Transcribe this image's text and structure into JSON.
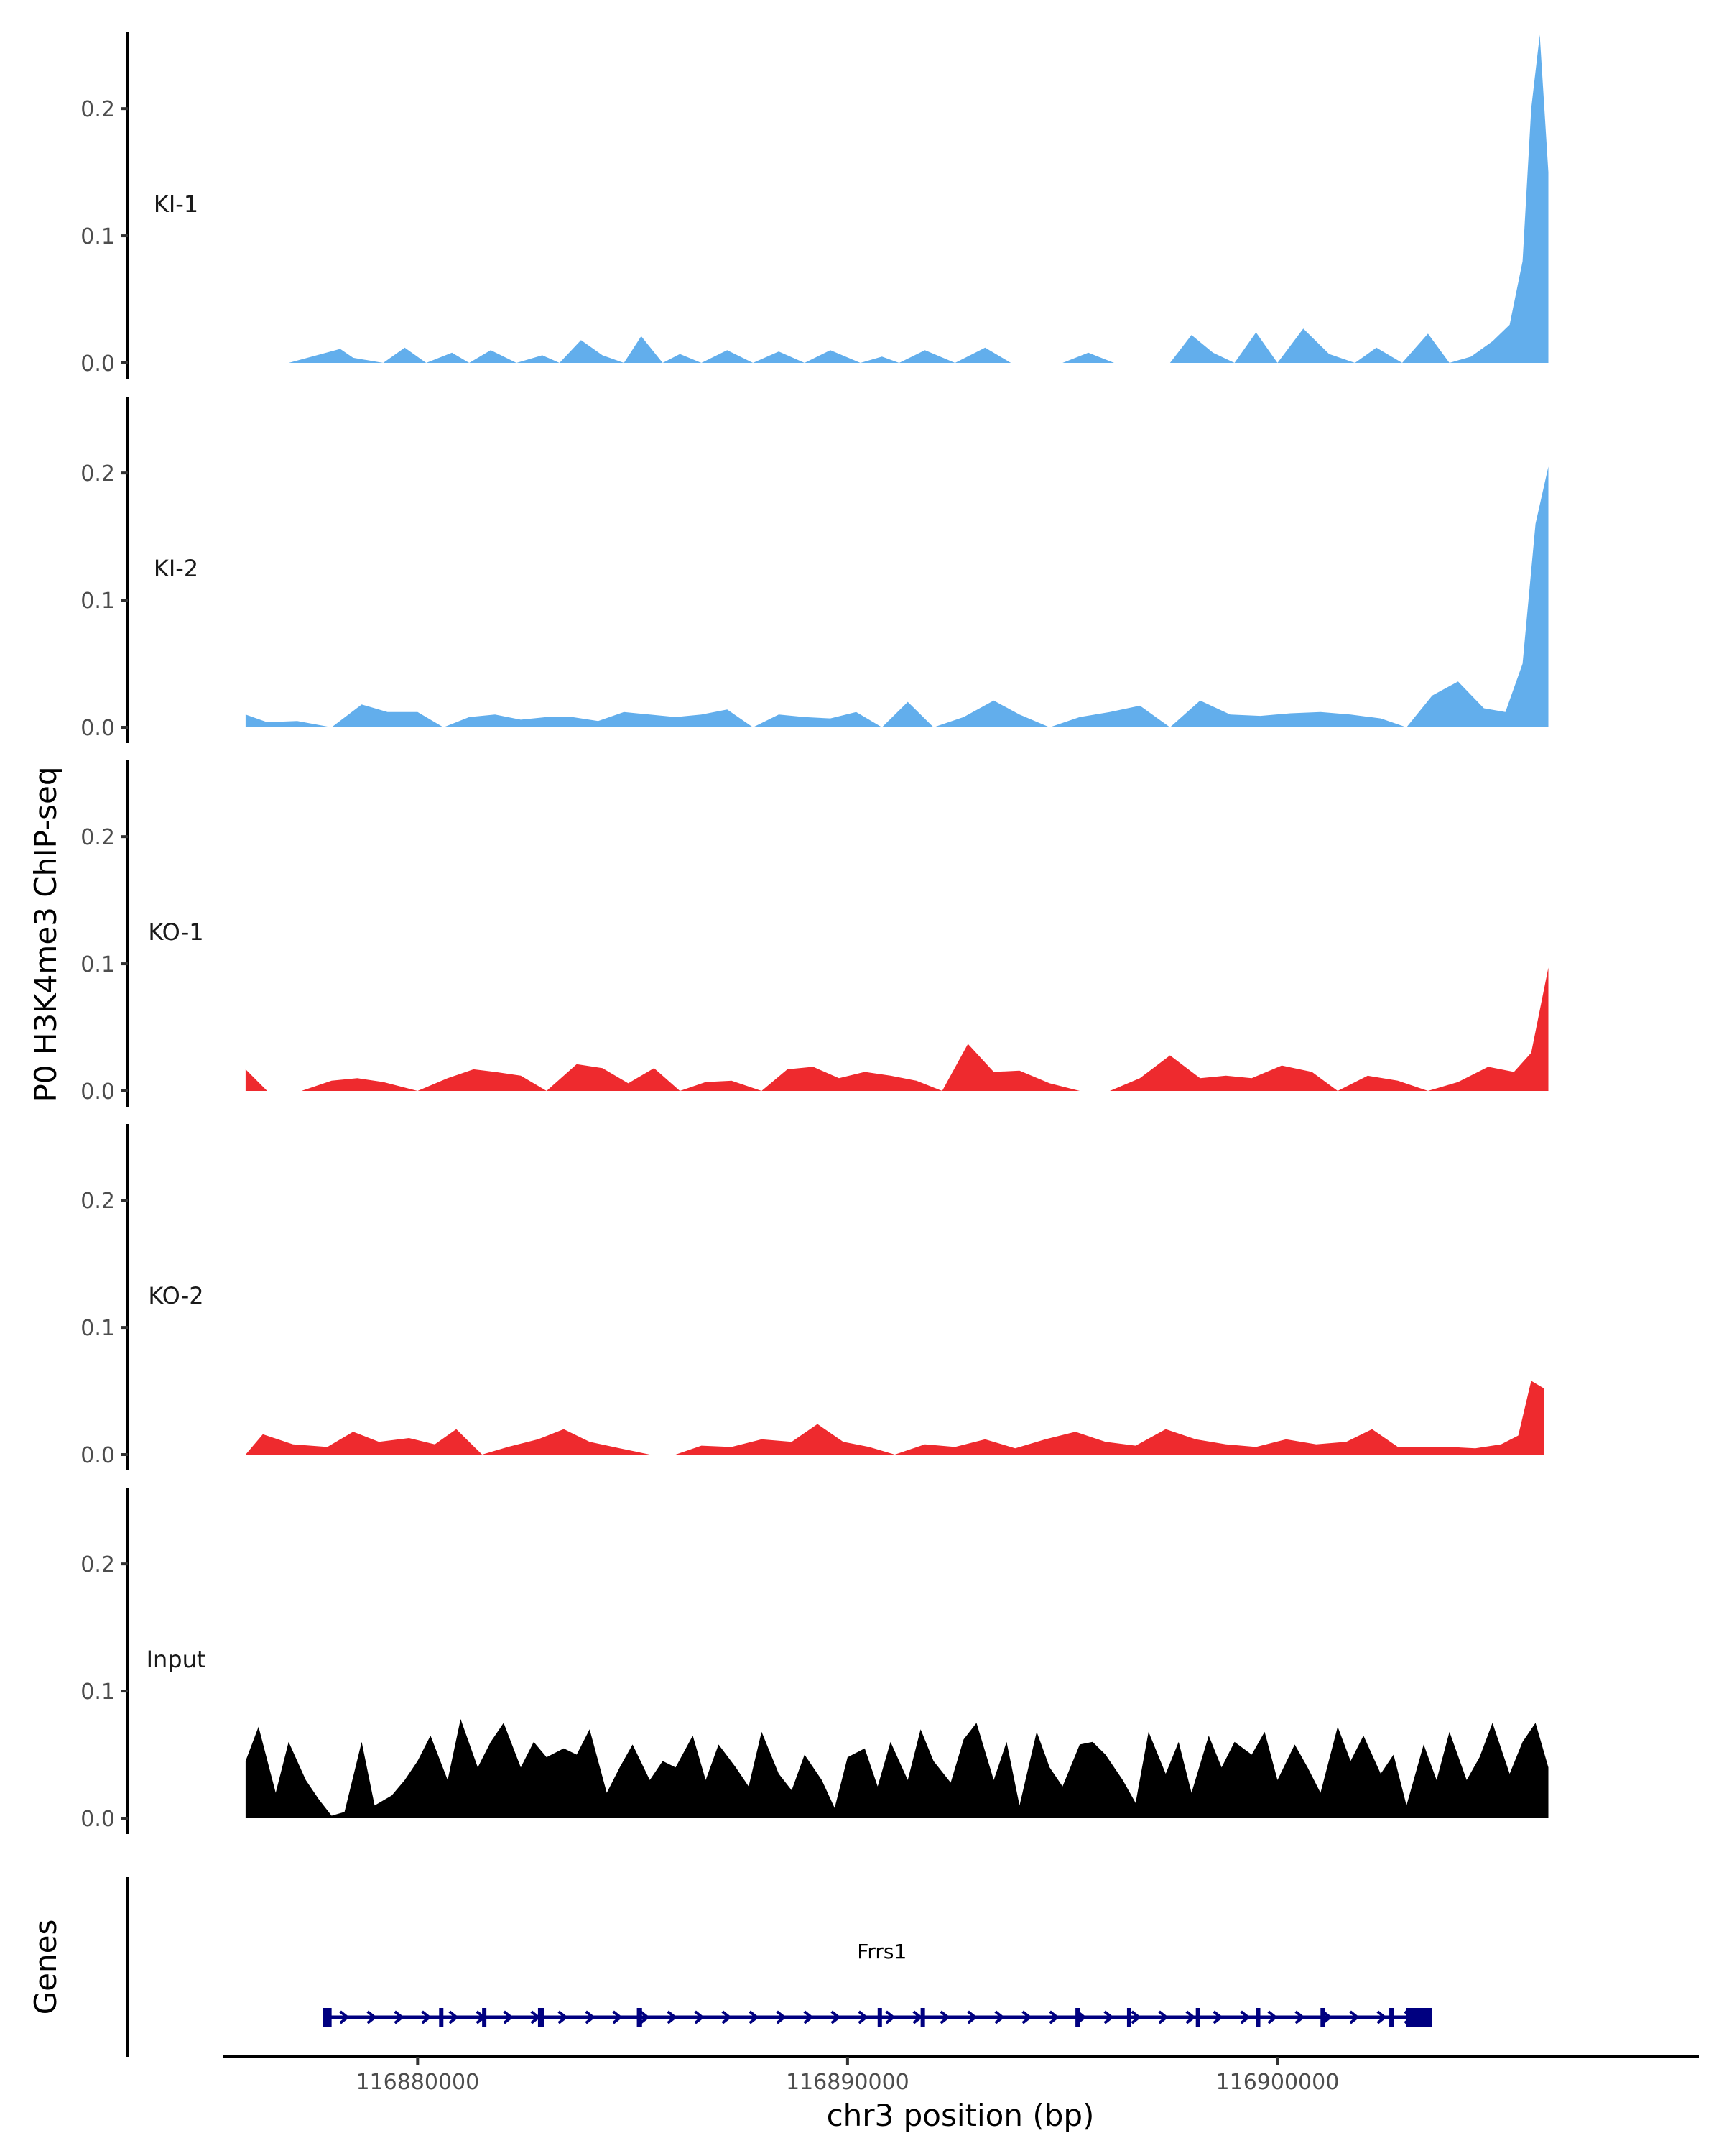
{
  "chart_data": {
    "type": "area",
    "ylabel": "P0 H3K4me3 ChIP-seq",
    "xlabel": "chr3 position (bp)",
    "xlim": [
      116875500,
      116909800
    ],
    "x_ticks": [
      {
        "value": 116880000,
        "label": "116880000"
      },
      {
        "value": 116890000,
        "label": "116890000"
      },
      {
        "value": 116900000,
        "label": "116900000"
      }
    ],
    "ylim": [
      0,
      0.26
    ],
    "y_ticks": [
      {
        "value": 0.0,
        "label": "0.0"
      },
      {
        "value": 0.1,
        "label": "0.1"
      },
      {
        "value": 0.2,
        "label": "0.2"
      }
    ],
    "grid": false,
    "tracks": [
      {
        "name": "KI-1",
        "color": "#62AEEC",
        "x": [
          116876000,
          116876800,
          116877000,
          116878200,
          116878500,
          116879200,
          116879700,
          116880200,
          116880800,
          116881200,
          116881700,
          116882300,
          116882900,
          116883300,
          116883800,
          116884300,
          116884800,
          116885200,
          116885700,
          116886100,
          116886600,
          116887200,
          116887800,
          116888400,
          116889000,
          116889600,
          116890300,
          116890800,
          116891200,
          116891800,
          116892500,
          116893200,
          116893800,
          116894400,
          116895000,
          116895600,
          116896200,
          116896800,
          116897500,
          116898000,
          116898500,
          116899000,
          116899500,
          116900000,
          116900600,
          116901200,
          116901800,
          116902300,
          116902900,
          116903500,
          116904000,
          116904500,
          116905000,
          116905400,
          116905700,
          116905900,
          116906100,
          116906300
        ],
        "y": [
          0,
          0,
          0,
          0.011,
          0.004,
          0,
          0.012,
          0,
          0.008,
          0,
          0.01,
          0,
          0.006,
          0,
          0.018,
          0.006,
          0,
          0.021,
          0,
          0.007,
          0,
          0.01,
          0,
          0.009,
          0,
          0.01,
          0,
          0.005,
          0,
          0.01,
          0,
          0.012,
          0,
          0,
          0,
          0.008,
          0,
          0,
          0,
          0.022,
          0.008,
          0,
          0.024,
          0,
          0.027,
          0.007,
          0,
          0.012,
          0,
          0.023,
          0,
          0.005,
          0.017,
          0.03,
          0.08,
          0.2,
          0.258,
          0.15
        ],
        "x_end": 116906300
      },
      {
        "name": "KI-2",
        "color": "#62AEEC",
        "x": [
          116876000,
          116876500,
          116877200,
          116878000,
          116878700,
          116879300,
          116880000,
          116880600,
          116881200,
          116881800,
          116882400,
          116883000,
          116883600,
          116884200,
          116884800,
          116885400,
          116886000,
          116886600,
          116887200,
          116887800,
          116888400,
          116889000,
          116889600,
          116890200,
          116890800,
          116891400,
          116892000,
          116892700,
          116893400,
          116894000,
          116894700,
          116895400,
          116896100,
          116896800,
          116897500,
          116898200,
          116898900,
          116899600,
          116900300,
          116901000,
          116901700,
          116902400,
          116903000,
          116903600,
          116904200,
          116904800,
          116905300,
          116905700,
          116906000,
          116906300
        ],
        "y": [
          0.01,
          0.004,
          0.005,
          0,
          0.018,
          0.012,
          0.012,
          0,
          0.008,
          0.01,
          0.006,
          0.008,
          0.008,
          0.005,
          0.012,
          0.01,
          0.008,
          0.01,
          0.014,
          0,
          0.01,
          0.008,
          0.007,
          0.012,
          0,
          0.02,
          0,
          0.008,
          0.021,
          0.01,
          0,
          0.008,
          0.012,
          0.017,
          0,
          0.021,
          0.01,
          0.009,
          0.011,
          0.012,
          0.01,
          0.007,
          0,
          0.025,
          0.036,
          0.015,
          0.012,
          0.05,
          0.16,
          0.205
        ]
      },
      {
        "name": "KO-1",
        "color": "#EE2A2E",
        "x": [
          116876000,
          116876500,
          116877300,
          116878000,
          116878600,
          116879200,
          116880000,
          116880700,
          116881300,
          116881800,
          116882400,
          116883000,
          116883700,
          116884300,
          116884900,
          116885500,
          116886100,
          116886700,
          116887300,
          116888000,
          116888600,
          116889200,
          116889800,
          116890400,
          116891000,
          116891600,
          116892200,
          116892800,
          116893400,
          116894000,
          116894700,
          116895400,
          116896100,
          116896800,
          116897500,
          116898200,
          116898800,
          116899400,
          116900100,
          116900800,
          116901400,
          116902100,
          116902800,
          116903500,
          116904200,
          116904900,
          116905500,
          116905900,
          116906300
        ],
        "y": [
          0.017,
          0,
          0,
          0.008,
          0.01,
          0.007,
          0,
          0.01,
          0.017,
          0.015,
          0.012,
          0,
          0.021,
          0.018,
          0.006,
          0.018,
          0,
          0.007,
          0.008,
          0,
          0.017,
          0.019,
          0.01,
          0.015,
          0.012,
          0.008,
          0,
          0.037,
          0.015,
          0.016,
          0.006,
          0,
          0,
          0.01,
          0.028,
          0.01,
          0.012,
          0.01,
          0.02,
          0.015,
          0,
          0.012,
          0.008,
          0,
          0.007,
          0.019,
          0.015,
          0.03,
          0.097
        ]
      },
      {
        "name": "KO-2",
        "color": "#EE2A2E",
        "x": [
          116876000,
          116876400,
          116877100,
          116877900,
          116878500,
          116879100,
          116879800,
          116880400,
          116880900,
          116881500,
          116882100,
          116882800,
          116883400,
          116884000,
          116884700,
          116885400,
          116886000,
          116886600,
          116887300,
          116888000,
          116888700,
          116889300,
          116889900,
          116890500,
          116891100,
          116891800,
          116892500,
          116893200,
          116893900,
          116894600,
          116895300,
          116896000,
          116896700,
          116897400,
          116898100,
          116898800,
          116899500,
          116900200,
          116900900,
          116901600,
          116902200,
          116902800,
          116903400,
          116904000,
          116904600,
          116905200,
          116905600,
          116905900,
          116906200
        ],
        "y": [
          0,
          0.016,
          0.008,
          0.006,
          0.018,
          0.01,
          0.013,
          0.008,
          0.02,
          0,
          0.006,
          0.012,
          0.02,
          0.01,
          0.005,
          0,
          0,
          0.007,
          0.006,
          0.012,
          0.01,
          0.024,
          0.01,
          0.006,
          0,
          0.008,
          0.006,
          0.012,
          0.005,
          0.012,
          0.018,
          0.01,
          0.007,
          0.02,
          0.012,
          0.008,
          0.006,
          0.012,
          0.008,
          0.01,
          0.02,
          0.006,
          0.006,
          0.006,
          0.005,
          0.008,
          0.015,
          0.058,
          0.052
        ]
      },
      {
        "name": "Input",
        "color": "#000000",
        "x": [
          116876000,
          116876300,
          116876700,
          116877000,
          116877400,
          116877700,
          116878000,
          116878300,
          116878700,
          116879000,
          116879400,
          116879700,
          116880000,
          116880300,
          116880700,
          116881000,
          116881400,
          116881700,
          116882000,
          116882400,
          116882700,
          116883000,
          116883400,
          116883700,
          116884000,
          116884400,
          116884700,
          116885000,
          116885400,
          116885700,
          116886000,
          116886400,
          116886700,
          116887000,
          116887400,
          116887700,
          116888000,
          116888400,
          116888700,
          116889000,
          116889400,
          116889700,
          116890000,
          116890400,
          116890700,
          116891000,
          116891400,
          116891700,
          116892000,
          116892400,
          116892700,
          116893000,
          116893400,
          116893700,
          116894000,
          116894400,
          116894700,
          116895000,
          116895400,
          116895700,
          116896000,
          116896400,
          116896700,
          116897000,
          116897400,
          116897700,
          116898000,
          116898400,
          116898700,
          116899000,
          116899400,
          116899700,
          116900000,
          116900400,
          116900700,
          116901000,
          116901400,
          116901700,
          116902000,
          116902400,
          116902700,
          116903000,
          116903400,
          116903700,
          116904000,
          116904400,
          116904700,
          116905000,
          116905400,
          116905700,
          116906000,
          116906300
        ],
        "y": [
          0.045,
          0.072,
          0.02,
          0.06,
          0.03,
          0.015,
          0.002,
          0.005,
          0.06,
          0.01,
          0.018,
          0.03,
          0.045,
          0.065,
          0.03,
          0.078,
          0.04,
          0.06,
          0.075,
          0.04,
          0.06,
          0.048,
          0.055,
          0.05,
          0.07,
          0.02,
          0.04,
          0.058,
          0.03,
          0.045,
          0.04,
          0.065,
          0.03,
          0.058,
          0.04,
          0.025,
          0.068,
          0.035,
          0.022,
          0.05,
          0.03,
          0.008,
          0.048,
          0.055,
          0.025,
          0.06,
          0.03,
          0.07,
          0.045,
          0.028,
          0.062,
          0.075,
          0.03,
          0.06,
          0.01,
          0.068,
          0.04,
          0.025,
          0.058,
          0.06,
          0.05,
          0.03,
          0.012,
          0.068,
          0.035,
          0.06,
          0.02,
          0.065,
          0.04,
          0.06,
          0.05,
          0.068,
          0.03,
          0.058,
          0.04,
          0.02,
          0.072,
          0.045,
          0.065,
          0.035,
          0.05,
          0.01,
          0.058,
          0.03,
          0.068,
          0.03,
          0.048,
          0.075,
          0.035,
          0.06,
          0.075,
          0.04
        ]
      }
    ],
    "genes": [
      {
        "name": "Frrs1",
        "strand": "+",
        "color": "#000080",
        "start": 116877800,
        "end": 116903600,
        "exons": [
          [
            116877800,
            116878000
          ],
          [
            116880500,
            116880600
          ],
          [
            116881500,
            116881570
          ],
          [
            116882800,
            116882950
          ],
          [
            116885100,
            116885220
          ],
          [
            116890700,
            116890760
          ],
          [
            116891700,
            116891800
          ],
          [
            116895300,
            116895390
          ],
          [
            116896500,
            116896580
          ],
          [
            116898100,
            116898170
          ],
          [
            116899500,
            116899580
          ],
          [
            116901000,
            116901070
          ],
          [
            116902600,
            116902700
          ],
          [
            116903000,
            116903600
          ]
        ]
      }
    ],
    "genes_label": "Genes"
  }
}
